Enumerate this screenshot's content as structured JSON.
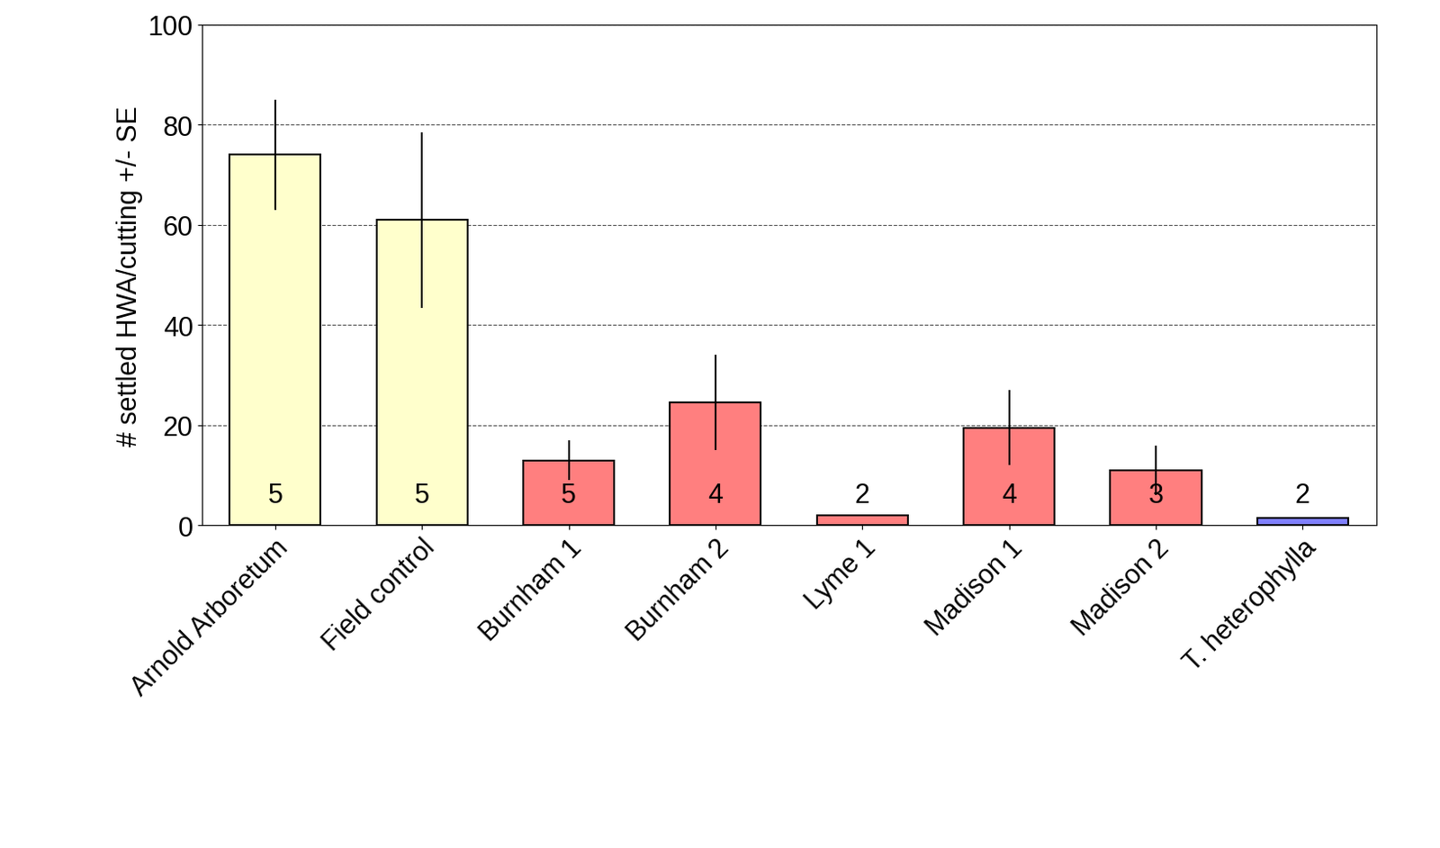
{
  "chart_data": {
    "type": "bar",
    "y_label": "# settled HWA/cutting +/- SE",
    "categories": [
      "Arnold Arboretum",
      "Field control",
      "Burnham 1",
      "Burnham 2",
      "Lyme 1",
      "Madison 1",
      "Madison 2",
      "T. heterophylla"
    ],
    "values": [
      74,
      61,
      13,
      24.5,
      2,
      19.5,
      11,
      1.5
    ],
    "se": [
      11,
      17.5,
      4,
      9.5,
      0,
      7.5,
      5,
      0
    ],
    "n": [
      5,
      5,
      5,
      4,
      2,
      4,
      3,
      2
    ],
    "colors": [
      "#ffffcc",
      "#ffffcc",
      "#ff7f7f",
      "#ff7f7f",
      "#ff7f7f",
      "#ff7f7f",
      "#ff7f7f",
      "#8080ff"
    ],
    "ylim": [
      0,
      100
    ],
    "yticks": [
      0,
      20,
      40,
      60,
      80,
      100
    ],
    "grid": true
  }
}
